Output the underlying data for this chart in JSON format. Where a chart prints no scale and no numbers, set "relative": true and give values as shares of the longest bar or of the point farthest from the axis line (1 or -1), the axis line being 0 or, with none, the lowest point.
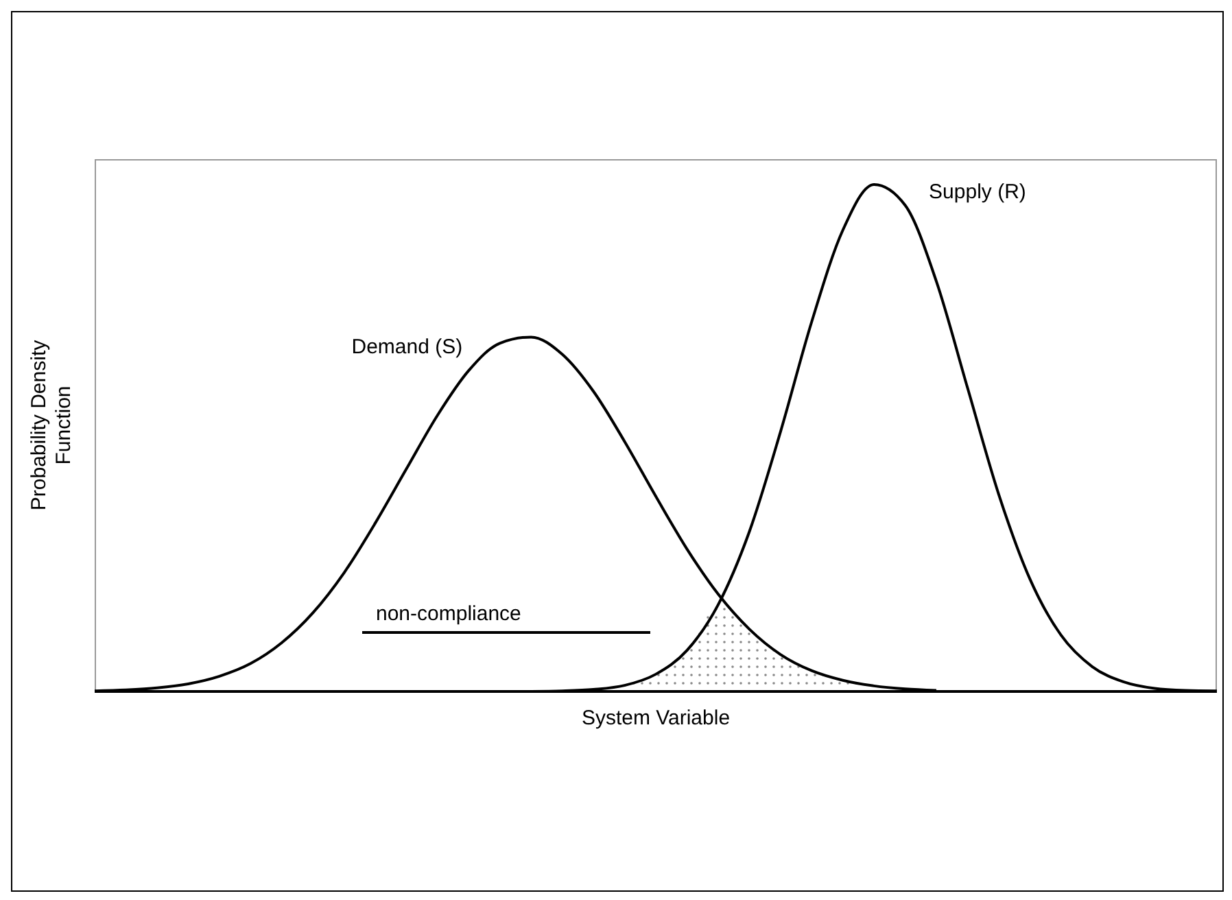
{
  "chart_data": {
    "type": "line",
    "relative": true,
    "xlabel": "System Variable",
    "ylabel": "Probability Density Function",
    "categories": [
      null,
      null,
      null,
      null,
      null,
      null,
      null,
      null,
      null,
      null,
      null,
      null,
      null,
      null,
      null,
      null,
      null,
      null,
      null,
      null,
      null,
      null,
      null,
      null,
      null,
      null,
      null,
      null,
      null,
      null,
      null,
      null,
      null,
      null,
      null,
      null,
      null
    ],
    "series": [
      {
        "name": "Demand (S)",
        "color": "#000000",
        "values": [
          0.001,
          0.003,
          0.007,
          0.015,
          0.03,
          0.055,
          0.096,
          0.155,
          0.234,
          0.332,
          0.439,
          0.545,
          0.633,
          0.687,
          0.699,
          0.665,
          0.592,
          0.493,
          0.385,
          0.281,
          0.192,
          0.123,
          0.073,
          0.041,
          0.022,
          0.011,
          0.005,
          0.002,
          null,
          null,
          null,
          null,
          null,
          null,
          null,
          null,
          null
        ]
      },
      {
        "name": "Supply (R)",
        "color": "#000000",
        "values": [
          null,
          null,
          null,
          null,
          null,
          null,
          null,
          null,
          null,
          null,
          null,
          null,
          null,
          null,
          0.0,
          0.001,
          0.004,
          0.012,
          0.034,
          0.081,
          0.171,
          0.315,
          0.512,
          0.729,
          0.91,
          1.0,
          0.959,
          0.809,
          0.599,
          0.389,
          0.222,
          0.111,
          0.049,
          0.019,
          0.006,
          0.002,
          0.001
        ]
      },
      {
        "type": "area",
        "color": "#888888",
        "values": [
          null,
          null,
          null,
          null,
          null,
          null,
          null,
          null,
          null,
          null,
          null,
          null,
          null,
          null,
          0.0,
          0.001,
          0.004,
          0.012,
          0.034,
          0.081,
          0.171,
          0.123,
          0.073,
          0.041,
          0.022,
          0.011,
          0.005,
          0.002,
          null,
          null,
          null,
          null,
          null,
          null,
          null,
          null,
          null
        ]
      }
    ],
    "annotations": [
      "non-compliance"
    ]
  }
}
